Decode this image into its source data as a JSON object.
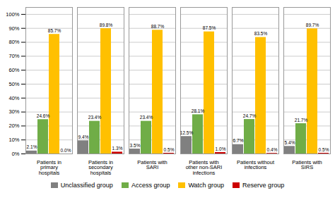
{
  "chart_data": {
    "type": "bar",
    "categories": [
      "Patients in\nprimary\nhospitals",
      "Patients in\nsecondary\nhospitals",
      "Patients with\nSARI",
      "Patients with\nother non-SARI\ninfections",
      "Patients without\ninfections",
      "Patients with\nSIRS"
    ],
    "series": [
      {
        "name": "Unclassified group",
        "color": "#808080",
        "values": [
          2.1,
          9.4,
          3.5,
          12.5,
          6.7,
          5.4
        ],
        "value_labels": [
          "2.1%",
          "9.4%",
          "3.5%",
          "12.5%",
          "6.7%",
          "5.4%"
        ]
      },
      {
        "name": "Access group",
        "color": "#70ad47",
        "values": [
          24.6,
          23.4,
          23.4,
          28.1,
          24.7,
          21.7
        ],
        "value_labels": [
          "24.6%",
          "23.4%",
          "23.4%",
          "28.1%",
          "24.7%",
          "21.7%"
        ]
      },
      {
        "name": "Watch group",
        "color": "#ffc000",
        "values": [
          85.7,
          89.8,
          88.7,
          87.5,
          83.5,
          89.7
        ],
        "value_labels": [
          "85.7%",
          "89.8%",
          "88.7%",
          "87.5%",
          "83.5%",
          "89.7%"
        ]
      },
      {
        "name": "Reserve group",
        "color": "#cc0000",
        "values": [
          0.0,
          1.3,
          0.5,
          1.0,
          0.4,
          0.5
        ],
        "value_labels": [
          "0.0%",
          "1.3%",
          "0.5%",
          "1.0%",
          "0.4%",
          "0.5%"
        ]
      }
    ],
    "ylim": [
      0,
      105
    ],
    "yticks": [
      {
        "value": 0,
        "label": "0%"
      },
      {
        "value": 10,
        "label": "10%"
      },
      {
        "value": 20,
        "label": "20%"
      },
      {
        "value": 30,
        "label": "30%"
      },
      {
        "value": 40,
        "label": "40%"
      },
      {
        "value": 50,
        "label": "50%"
      },
      {
        "value": 60,
        "label": "60%"
      },
      {
        "value": 70,
        "label": "70%"
      },
      {
        "value": 80,
        "label": "80%"
      },
      {
        "value": 90,
        "label": "90%"
      },
      {
        "value": 100,
        "label": "100%"
      }
    ],
    "grid": true,
    "data_labels": true,
    "legend": "bottom"
  }
}
